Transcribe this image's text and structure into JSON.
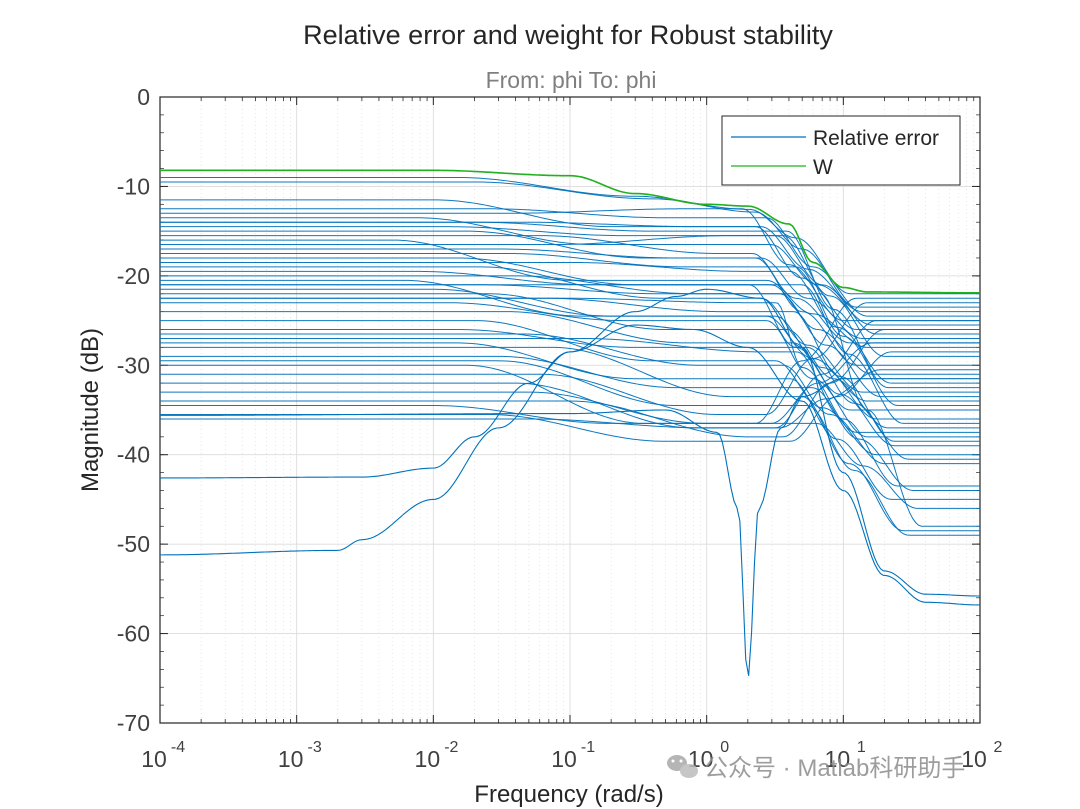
{
  "chart_data": {
    "type": "line",
    "title": "Relative error and weight for Robust stability",
    "subtitle": "From: phi  To: phi",
    "xlabel": "Frequency  (rad/s)",
    "ylabel": "Magnitude (dB)",
    "xscale": "log",
    "xlim": [
      0.0001,
      100
    ],
    "ylim": [
      -70,
      0
    ],
    "x_ticks": [
      {
        "base": "10",
        "exp": "-4"
      },
      {
        "base": "10",
        "exp": "-3"
      },
      {
        "base": "10",
        "exp": "-2"
      },
      {
        "base": "10",
        "exp": "-1"
      },
      {
        "base": "10",
        "exp": "0"
      },
      {
        "base": "10",
        "exp": "1"
      },
      {
        "base": "10",
        "exp": "2"
      }
    ],
    "y_ticks": [
      "0",
      "-10",
      "-20",
      "-30",
      "-40",
      "-50",
      "-60",
      "-70"
    ],
    "grid": true,
    "legend_position": "top-right",
    "legend": [
      {
        "label": "Relative error",
        "color": "#0072BD"
      },
      {
        "label": "W",
        "color": "#21B01F"
      }
    ],
    "weight_series": {
      "name": "W",
      "color": "#21B01F",
      "points": [
        [
          0.0001,
          -8.2
        ],
        [
          0.01,
          -8.2
        ],
        [
          0.1,
          -8.8
        ],
        [
          0.3,
          -10.8
        ],
        [
          1,
          -12.0
        ],
        [
          2,
          -12.2
        ],
        [
          4,
          -14.2
        ],
        [
          6,
          -18.5
        ],
        [
          10,
          -21.3
        ],
        [
          15,
          -21.8
        ],
        [
          100,
          -21.9
        ]
      ]
    },
    "relative_error_color": "#0072BD",
    "relative_error_highlights": [
      {
        "name": "notch",
        "points": [
          [
            0.0001,
            -35.6
          ],
          [
            0.1,
            -35.4
          ],
          [
            0.5,
            -35.0
          ],
          [
            1.2,
            -37.5
          ],
          [
            1.7,
            -46
          ],
          [
            2.0,
            -65
          ],
          [
            2.4,
            -46
          ],
          [
            3.5,
            -37
          ],
          [
            5,
            -33.5
          ],
          [
            10,
            -31.5
          ],
          [
            100,
            -31.5
          ]
        ]
      },
      {
        "name": "deep-low-start",
        "points": [
          [
            0.0001,
            -51.2
          ],
          [
            0.002,
            -50.7
          ],
          [
            0.003,
            -49.5
          ],
          [
            0.01,
            -45
          ],
          [
            0.03,
            -37
          ],
          [
            0.1,
            -28.5
          ],
          [
            0.3,
            -24
          ],
          [
            0.6,
            -22.3
          ],
          [
            1,
            -21.5
          ],
          [
            2.5,
            -22.5
          ],
          [
            5,
            -28
          ],
          [
            10,
            -42
          ],
          [
            20,
            -53
          ],
          [
            40,
            -55.6
          ],
          [
            100,
            -55.8
          ]
        ]
      },
      {
        "name": "mid-low-start",
        "points": [
          [
            0.0001,
            -42.6
          ],
          [
            0.003,
            -42.5
          ],
          [
            0.01,
            -41.5
          ],
          [
            0.02,
            -38
          ],
          [
            0.05,
            -32
          ],
          [
            0.1,
            -28.5
          ],
          [
            0.3,
            -25.5
          ],
          [
            0.8,
            -26
          ],
          [
            2,
            -28
          ],
          [
            5,
            -34
          ],
          [
            10,
            -44
          ],
          [
            20,
            -53.5
          ],
          [
            40,
            -56.5
          ],
          [
            100,
            -56.8
          ]
        ]
      }
    ],
    "relative_error_family": {
      "count": 45,
      "low_freq_db": [
        -9.0,
        -9.5,
        -11.5,
        -12.5,
        -13.0,
        -13.5,
        -14.0,
        -14.5,
        -15.0,
        -15.5,
        -16.0,
        -16.5,
        -17.0,
        -18.0,
        -18.5,
        -19.0,
        -20.0,
        -20.5,
        -21.0,
        -21.5,
        -22.0,
        -22.5,
        -23.0,
        -24.0,
        -25.0,
        -26.5,
        -27.0,
        -27.5,
        -28.0,
        -29.5,
        -30.0,
        -31.0,
        -32.0,
        -34.0,
        -34.5,
        -35.5,
        -36.0,
        -14.0,
        -17.5,
        -19.5,
        -22.5,
        -26.0,
        -29.0,
        -33.0,
        -21.0
      ],
      "high_freq_db": [
        -22.0,
        -23.5,
        -24.0,
        -24.5,
        -25.0,
        -25.5,
        -26.0,
        -26.5,
        -27.0,
        -27.5,
        -28.0,
        -29.0,
        -30.0,
        -31.0,
        -32.0,
        -33.0,
        -33.5,
        -34.0,
        -35.0,
        -36.0,
        -37.0,
        -37.5,
        -38.0,
        -39.0,
        -40.0,
        -41.0,
        -43.5,
        -45.0,
        -48.5,
        -49.0,
        -22.5,
        -23.0,
        -25.0,
        -26.0,
        -27.5,
        -28.5,
        -30.5,
        -32.5,
        -34.5,
        -36.5,
        -38.5,
        -40.5,
        -44.0,
        -46.0,
        -48.0
      ],
      "mid_peak_db": [
        -9.5,
        -10.5,
        -14.5,
        -13.5,
        -12.5,
        -16.5,
        -14.5,
        -15.5,
        -18.0,
        -17.5,
        -20.5,
        -15.5,
        -18.0,
        -21.0,
        -19.5,
        -22.5,
        -22.0,
        -24.5,
        -21.0,
        -24.5,
        -26.0,
        -23.0,
        -25.0,
        -27.5,
        -29.5,
        -30.0,
        -28.5,
        -31.5,
        -33.5,
        -34.5,
        -36.5,
        -35.5,
        -37.0,
        -38.0,
        -36.5,
        -38.5,
        -37.0,
        -15.0,
        -19.0,
        -21.0,
        -24.0,
        -28.0,
        -32.5,
        -36.5,
        -22.0
      ],
      "mid_peak_freq": [
        0.3,
        0.4,
        0.2,
        0.5,
        0.7,
        0.15,
        0.9,
        0.25,
        0.35,
        1.2,
        0.1,
        1.5,
        0.6,
        0.3,
        2.0,
        0.45,
        0.8,
        0.12,
        1.0,
        0.2,
        0.5,
        1.8,
        0.25,
        0.7,
        0.4,
        0.9,
        2.5,
        0.3,
        1.5,
        0.6,
        0.35,
        1.2,
        0.8,
        2.0,
        0.2,
        0.5,
        1.0,
        0.4,
        0.7,
        0.15,
        1.3,
        0.3,
        0.6,
        1.0,
        0.45
      ],
      "rolloff_freq": [
        4.5,
        5.0,
        5.5,
        6.0,
        4.0,
        6.5,
        5.0,
        7.0,
        5.5,
        4.5,
        6.0,
        8.0,
        5.0,
        6.5,
        9.0,
        5.5,
        7.5,
        6.0,
        4.5,
        7.0,
        8.5,
        5.0,
        6.0,
        9.5,
        7.0,
        8.0,
        10.0,
        9.0,
        11.0,
        12.0,
        5.0,
        6.0,
        7.0,
        8.0,
        6.5,
        9.0,
        7.5,
        8.5,
        10.0,
        11.0,
        9.5,
        12.0,
        13.0,
        14.0,
        15.0
      ]
    }
  },
  "watermark": {
    "text": "公众号 · Matlab科研助手",
    "icon": "wechat-icon"
  }
}
